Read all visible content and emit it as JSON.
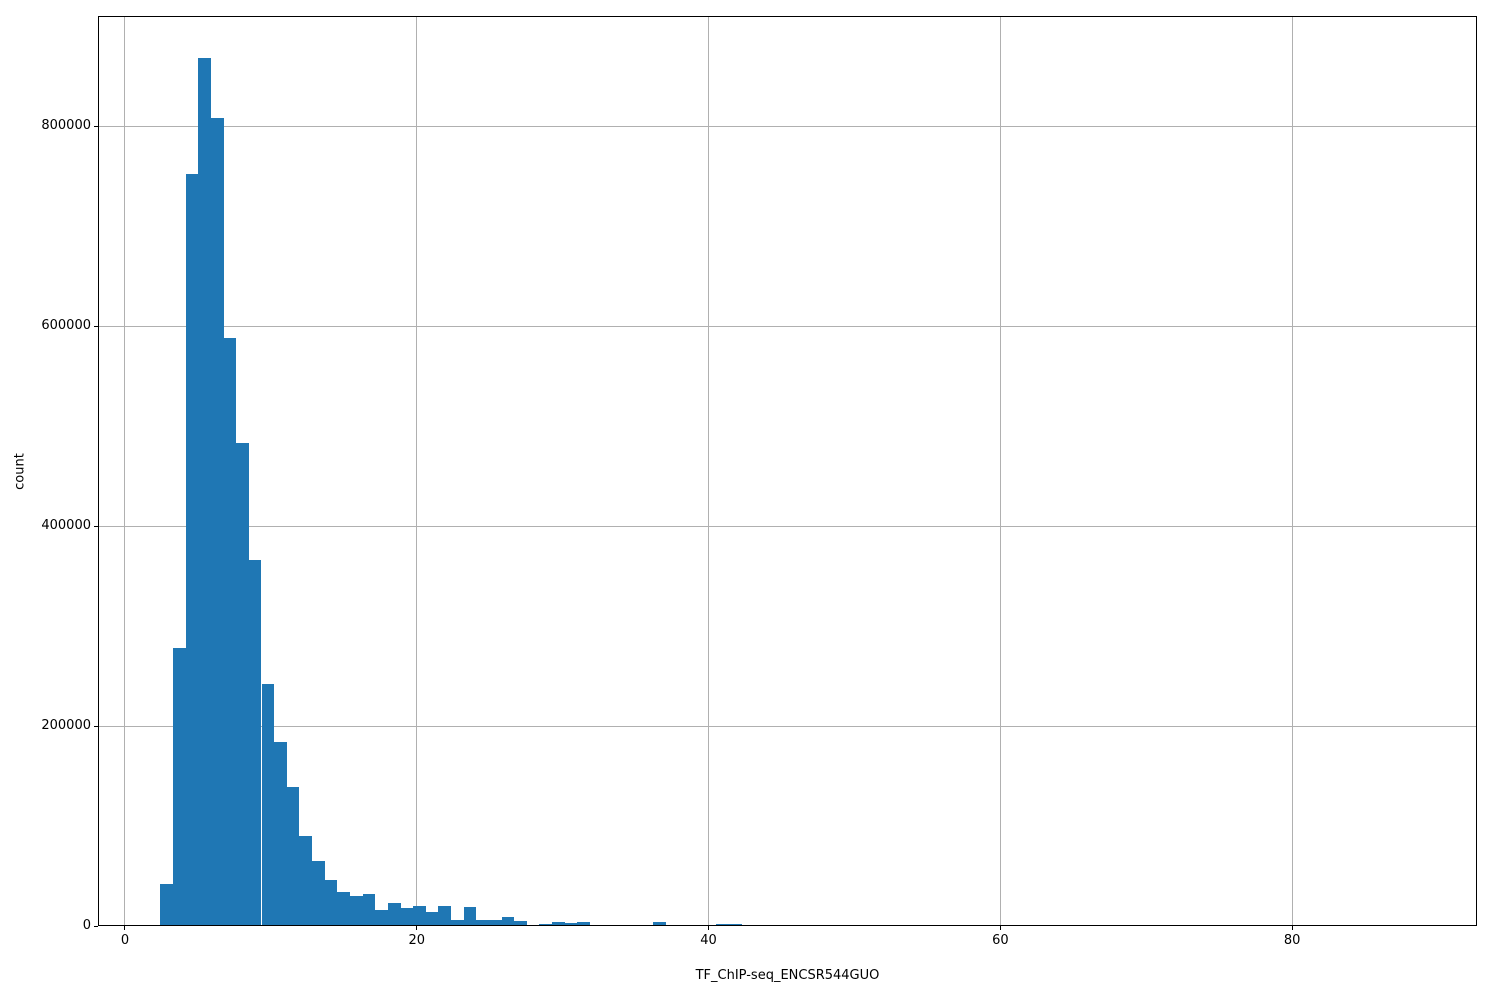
{
  "chart_data": {
    "type": "bar",
    "subtype": "histogram",
    "title": "",
    "xlabel": "TF_ChIP-seq_ENCSR544GUO",
    "ylabel": "count",
    "bar_color": "#1f77b4",
    "grid_color": "#b0b0b0",
    "grid": "on",
    "legend": "none",
    "x_ticks": [
      0,
      20,
      40,
      60,
      80
    ],
    "y_ticks": [
      0,
      200000,
      400000,
      600000,
      800000
    ],
    "xlim": [
      -1.85,
      92.67
    ],
    "ylim": [
      0,
      910000
    ],
    "bin_width": 0.866,
    "bins": [
      {
        "x": 2.43,
        "count": 42000
      },
      {
        "x": 3.3,
        "count": 278000
      },
      {
        "x": 4.16,
        "count": 752000
      },
      {
        "x": 5.03,
        "count": 868000
      },
      {
        "x": 5.89,
        "count": 808000
      },
      {
        "x": 6.76,
        "count": 588000
      },
      {
        "x": 7.63,
        "count": 483000
      },
      {
        "x": 8.49,
        "count": 366000
      },
      {
        "x": 9.36,
        "count": 242000
      },
      {
        "x": 10.22,
        "count": 184000
      },
      {
        "x": 11.09,
        "count": 139000
      },
      {
        "x": 11.96,
        "count": 90000
      },
      {
        "x": 12.82,
        "count": 65000
      },
      {
        "x": 13.69,
        "count": 46000
      },
      {
        "x": 14.55,
        "count": 34000
      },
      {
        "x": 15.42,
        "count": 30000
      },
      {
        "x": 16.29,
        "count": 32000
      },
      {
        "x": 17.15,
        "count": 16000
      },
      {
        "x": 18.02,
        "count": 23000
      },
      {
        "x": 18.88,
        "count": 18000
      },
      {
        "x": 19.75,
        "count": 20000
      },
      {
        "x": 20.62,
        "count": 14000
      },
      {
        "x": 21.48,
        "count": 20000
      },
      {
        "x": 22.35,
        "count": 6000
      },
      {
        "x": 23.21,
        "count": 19000
      },
      {
        "x": 24.08,
        "count": 6500
      },
      {
        "x": 24.95,
        "count": 6500
      },
      {
        "x": 25.81,
        "count": 8600
      },
      {
        "x": 26.68,
        "count": 5000
      },
      {
        "x": 27.54,
        "count": 800
      },
      {
        "x": 28.41,
        "count": 1800
      },
      {
        "x": 29.28,
        "count": 4300
      },
      {
        "x": 30.14,
        "count": 2700
      },
      {
        "x": 31.01,
        "count": 4300
      },
      {
        "x": 36.2,
        "count": 4000
      },
      {
        "x": 40.53,
        "count": 1800
      },
      {
        "x": 41.4,
        "count": 1800
      },
      {
        "x": 46.6,
        "count": 1500
      },
      {
        "x": 50.93,
        "count": 1500
      },
      {
        "x": 56.12,
        "count": 1500
      },
      {
        "x": 65.65,
        "count": 1500
      },
      {
        "x": 66.51,
        "count": 1500
      },
      {
        "x": 68.25,
        "count": 1500
      }
    ]
  }
}
